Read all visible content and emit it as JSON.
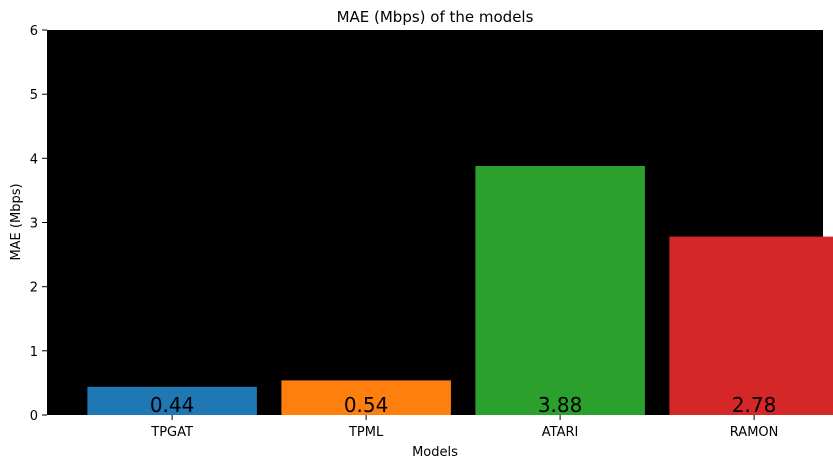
{
  "chart_data": {
    "type": "bar",
    "title": "MAE (Mbps) of the models",
    "xlabel": "Models",
    "ylabel": "MAE (Mbps)",
    "categories": [
      "TPGAT",
      "TPML",
      "ATARI",
      "RAMON"
    ],
    "values": [
      0.44,
      0.54,
      3.88,
      2.78
    ],
    "data_labels": [
      "0.44",
      "0.54",
      "3.88",
      "2.78"
    ],
    "colors": [
      "#1f77b4",
      "#ff7f0e",
      "#2ca02c",
      "#d62728"
    ],
    "ylim": [
      0,
      6
    ],
    "yticks": [
      0,
      1,
      2,
      3,
      4,
      5,
      6
    ],
    "plot_background": "#000000",
    "grid": false,
    "legend": "none"
  }
}
